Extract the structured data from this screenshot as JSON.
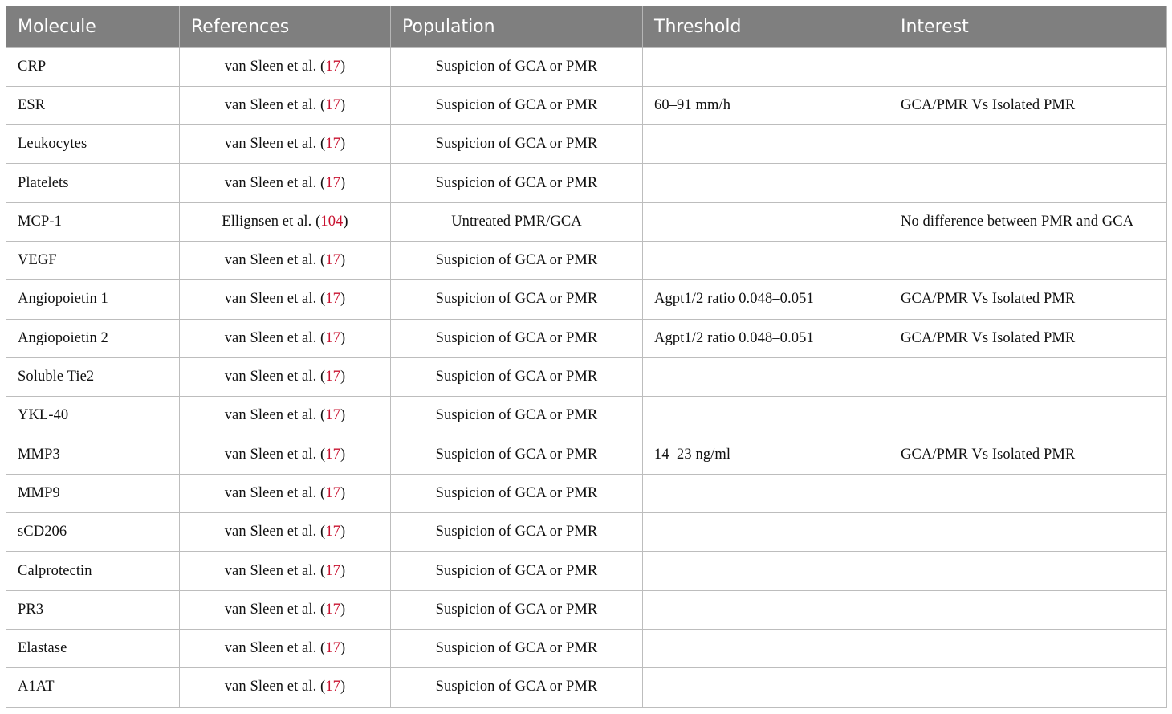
{
  "table": {
    "headers": [
      "Molecule",
      "References",
      "Population",
      "Threshold",
      "Interest"
    ],
    "rows": [
      {
        "molecule": "CRP",
        "ref_authors": "van Sleen et al.",
        "ref_num": "17",
        "population": "Suspicion of GCA or PMR",
        "threshold": "",
        "interest": ""
      },
      {
        "molecule": "ESR",
        "ref_authors": "van Sleen et al.",
        "ref_num": "17",
        "population": "Suspicion of GCA or PMR",
        "threshold": "60–91 mm/h",
        "interest": "GCA/PMR Vs Isolated PMR"
      },
      {
        "molecule": "Leukocytes",
        "ref_authors": "van Sleen et al.",
        "ref_num": "17",
        "population": "Suspicion of GCA or PMR",
        "threshold": "",
        "interest": ""
      },
      {
        "molecule": "Platelets",
        "ref_authors": "van Sleen et al.",
        "ref_num": "17",
        "population": "Suspicion of GCA or PMR",
        "threshold": "",
        "interest": ""
      },
      {
        "molecule": "MCP-1",
        "ref_authors": "Ellignsen et al.",
        "ref_num": "104",
        "population": "Untreated PMR/GCA",
        "threshold": "",
        "interest": "No difference between PMR and GCA"
      },
      {
        "molecule": "VEGF",
        "ref_authors": "van Sleen et al.",
        "ref_num": "17",
        "population": "Suspicion of GCA or PMR",
        "threshold": "",
        "interest": ""
      },
      {
        "molecule": "Angiopoietin 1",
        "ref_authors": "van Sleen et al.",
        "ref_num": "17",
        "population": "Suspicion of GCA or PMR",
        "threshold": "Agpt1/2 ratio 0.048–0.051",
        "interest": "GCA/PMR Vs Isolated PMR"
      },
      {
        "molecule": "Angiopoietin 2",
        "ref_authors": "van Sleen et al.",
        "ref_num": "17",
        "population": "Suspicion of GCA or PMR",
        "threshold": "Agpt1/2 ratio 0.048–0.051",
        "interest": "GCA/PMR Vs Isolated PMR"
      },
      {
        "molecule": "Soluble Tie2",
        "ref_authors": "van Sleen et al.",
        "ref_num": "17",
        "population": "Suspicion of GCA or PMR",
        "threshold": "",
        "interest": ""
      },
      {
        "molecule": "YKL-40",
        "ref_authors": "van Sleen et al.",
        "ref_num": "17",
        "population": "Suspicion of GCA or PMR",
        "threshold": "",
        "interest": ""
      },
      {
        "molecule": "MMP3",
        "ref_authors": "van Sleen et al.",
        "ref_num": "17",
        "population": "Suspicion of GCA or PMR",
        "threshold": "14–23 ng/ml",
        "interest": "GCA/PMR Vs Isolated PMR"
      },
      {
        "molecule": "MMP9",
        "ref_authors": "van Sleen et al.",
        "ref_num": "17",
        "population": "Suspicion of GCA or PMR",
        "threshold": "",
        "interest": ""
      },
      {
        "molecule": "sCD206",
        "ref_authors": "van Sleen et al.",
        "ref_num": "17",
        "population": "Suspicion of GCA or PMR",
        "threshold": "",
        "interest": ""
      },
      {
        "molecule": "Calprotectin",
        "ref_authors": "van Sleen et al.",
        "ref_num": "17",
        "population": "Suspicion of GCA or PMR",
        "threshold": "",
        "interest": ""
      },
      {
        "molecule": "PR3",
        "ref_authors": "van Sleen et al.",
        "ref_num": "17",
        "population": "Suspicion of GCA or PMR",
        "threshold": "",
        "interest": ""
      },
      {
        "molecule": "Elastase",
        "ref_authors": "van Sleen et al.",
        "ref_num": "17",
        "population": "Suspicion of GCA or PMR",
        "threshold": "",
        "interest": ""
      },
      {
        "molecule": "A1AT",
        "ref_authors": "van Sleen et al.",
        "ref_num": "17",
        "population": "Suspicion of GCA or PMR",
        "threshold": "",
        "interest": ""
      }
    ]
  },
  "colors": {
    "header_bg": "#7f7f7f",
    "header_text": "#ffffff",
    "reference_link": "#c8102e",
    "grid_line": "#bdbdbd"
  }
}
